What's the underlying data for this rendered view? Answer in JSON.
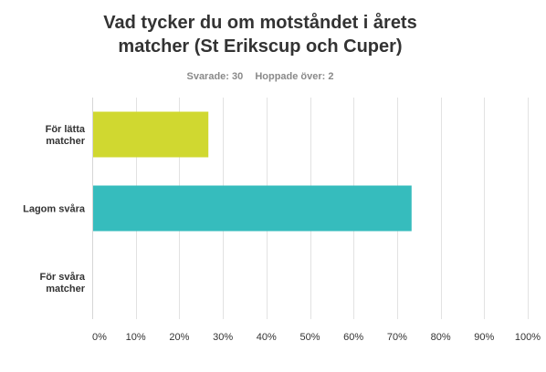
{
  "chart_data": {
    "type": "bar",
    "orientation": "horizontal",
    "title_lines": [
      "Vad tycker du om motståndet i årets",
      "matcher (St Erikscup och Cuper)"
    ],
    "categories": [
      [
        "För lätta",
        "matcher"
      ],
      [
        "Lagom svåra"
      ],
      [
        "För svåra",
        "matcher"
      ]
    ],
    "values": [
      26.67,
      73.33,
      0
    ],
    "colors": [
      "#d0d830",
      "#36bcbd",
      "#cccccc"
    ],
    "xlim": [
      0,
      100
    ],
    "xticks": [
      "0%",
      "10%",
      "20%",
      "30%",
      "40%",
      "50%",
      "60%",
      "70%",
      "80%",
      "90%",
      "100%"
    ],
    "grid": true,
    "legend": "none"
  },
  "summary": {
    "answered": "Svarade: 30",
    "skipped": "Hoppade över: 2"
  }
}
